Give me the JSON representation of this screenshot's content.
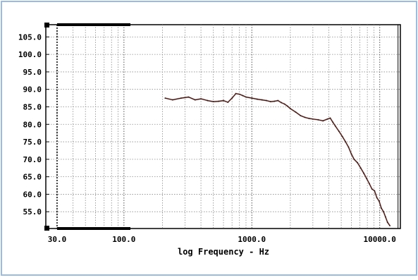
{
  "chart_data": {
    "type": "line",
    "title": "",
    "xlabel": "log Frequency - Hz",
    "ylabel": "",
    "x_scale": "log",
    "xlim": [
      24.5,
      14500
    ],
    "ylim": [
      50.2,
      108.5
    ],
    "y_ticks": [
      {
        "value": 55.0,
        "label": "55.0"
      },
      {
        "value": 60.0,
        "label": "60.0"
      },
      {
        "value": 65.0,
        "label": "65.0"
      },
      {
        "value": 70.0,
        "label": "70.0"
      },
      {
        "value": 75.0,
        "label": "75.0"
      },
      {
        "value": 80.0,
        "label": "80.0"
      },
      {
        "value": 85.0,
        "label": "85.0"
      },
      {
        "value": 90.0,
        "label": "90.0"
      },
      {
        "value": 95.0,
        "label": "95.0"
      },
      {
        "value": 100.0,
        "label": "100.0"
      },
      {
        "value": 105.0,
        "label": "105.0"
      }
    ],
    "x_ticks": [
      {
        "value": 30,
        "label": "30.0"
      },
      {
        "value": 100,
        "label": "100.0"
      },
      {
        "value": 1000,
        "label": "1000.0"
      },
      {
        "value": 10000,
        "label": "10000.0"
      }
    ],
    "grid": true,
    "colors": {
      "line": "#2a1a1a",
      "line_highlight": "#e06a5a",
      "grid": "#8a8a8a",
      "axis": "#000000",
      "frame": "#9bbbe0"
    },
    "series": [
      {
        "x": [
          210,
          240,
          280,
          320,
          360,
          400,
          450,
          500,
          550,
          600,
          650,
          700,
          750,
          800,
          850,
          900,
          1000,
          1100,
          1200,
          1300,
          1400,
          1500,
          1600,
          1700,
          1800,
          1900,
          2000,
          2200,
          2400,
          2600,
          2800,
          3000,
          3300,
          3600,
          3900,
          4100,
          4300,
          4500,
          4800,
          5100,
          5400,
          5700,
          6000,
          6300,
          6700,
          7100,
          7500,
          7900,
          8300,
          8700,
          9100,
          9500,
          9900,
          10300,
          10700,
          11100,
          11500,
          12000
        ],
        "y": [
          87.5,
          87.0,
          87.5,
          87.8,
          87.0,
          87.3,
          86.8,
          86.5,
          86.6,
          86.8,
          86.3,
          87.5,
          88.8,
          88.6,
          88.2,
          87.8,
          87.5,
          87.2,
          87.0,
          86.8,
          86.5,
          86.6,
          86.8,
          86.2,
          85.8,
          85.2,
          84.5,
          83.5,
          82.5,
          82.0,
          81.7,
          81.5,
          81.3,
          81.0,
          81.5,
          81.8,
          80.6,
          79.5,
          78.0,
          76.5,
          75.0,
          73.5,
          71.5,
          70.0,
          69.0,
          67.5,
          66.0,
          64.5,
          63.0,
          61.5,
          61.0,
          59.0,
          58.0,
          56.0,
          55.0,
          53.5,
          52.0,
          51.0
        ]
      }
    ]
  }
}
